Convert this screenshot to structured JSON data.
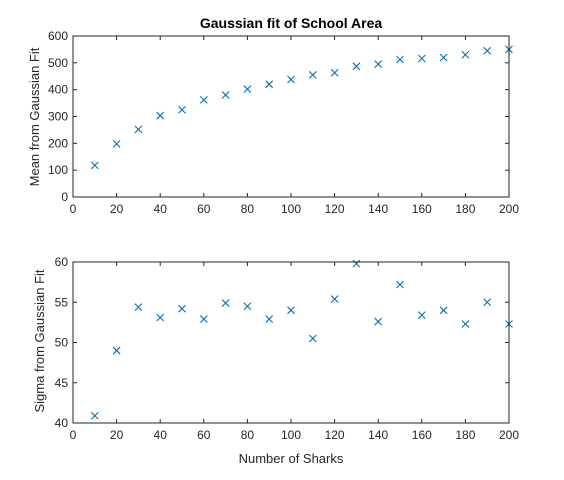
{
  "colors": {
    "marker": "#0072BD",
    "axis": "#262626",
    "background": "#ffffff"
  },
  "chart_data": [
    {
      "type": "scatter",
      "title": "Gaussian fit of School Area",
      "xlabel": "",
      "ylabel": "Mean from Gaussian Fit",
      "xlim": [
        0,
        200
      ],
      "ylim": [
        0,
        600
      ],
      "xticks": [
        "0",
        "20",
        "40",
        "60",
        "80",
        "100",
        "120",
        "140",
        "160",
        "180",
        "200"
      ],
      "yticks": [
        "0",
        "100",
        "200",
        "300",
        "400",
        "500",
        "600"
      ],
      "marker": "x",
      "grid": false,
      "x": [
        10,
        20,
        30,
        40,
        50,
        60,
        70,
        80,
        90,
        100,
        110,
        120,
        130,
        140,
        150,
        160,
        170,
        180,
        190,
        200
      ],
      "y": [
        118,
        198,
        252,
        303,
        325,
        362,
        380,
        402,
        420,
        438,
        455,
        463,
        487,
        495,
        512,
        516,
        520,
        530,
        545,
        550
      ]
    },
    {
      "type": "scatter",
      "title": "",
      "xlabel": "Number of Sharks",
      "ylabel": "Sigma from Gaussian Fit",
      "xlim": [
        0,
        200
      ],
      "ylim": [
        40,
        60
      ],
      "xticks": [
        "0",
        "20",
        "40",
        "60",
        "80",
        "100",
        "120",
        "140",
        "160",
        "180",
        "200"
      ],
      "yticks": [
        "40",
        "45",
        "50",
        "55",
        "60"
      ],
      "marker": "x",
      "grid": false,
      "x": [
        10,
        20,
        30,
        40,
        50,
        60,
        70,
        80,
        90,
        100,
        110,
        120,
        130,
        140,
        150,
        160,
        170,
        180,
        190,
        200
      ],
      "y": [
        40.9,
        49.0,
        54.4,
        53.1,
        54.2,
        52.9,
        54.9,
        54.5,
        52.9,
        54.0,
        50.5,
        55.4,
        59.8,
        52.6,
        57.2,
        53.4,
        54.0,
        52.3,
        55.0,
        52.3
      ]
    }
  ]
}
